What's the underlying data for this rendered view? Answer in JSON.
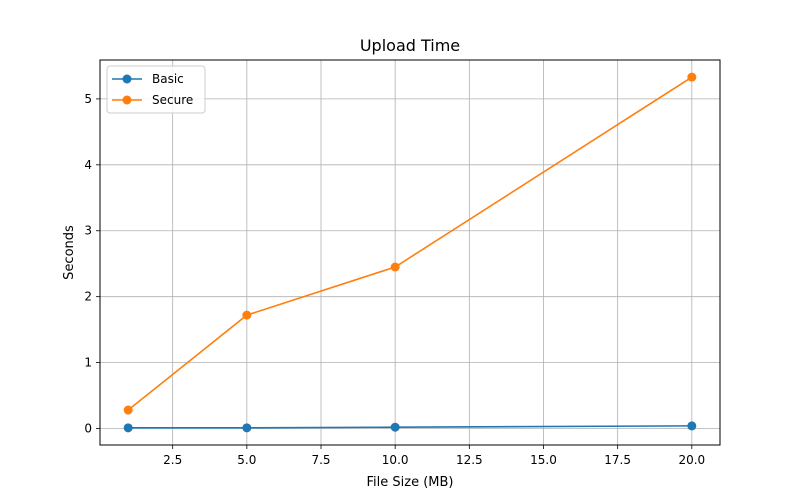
{
  "chart_data": {
    "type": "line",
    "title": "Upload Time",
    "xlabel": "File Size (MB)",
    "ylabel": "Seconds",
    "x": [
      1,
      5,
      10,
      20
    ],
    "xlim": [
      0.05,
      20.95
    ],
    "ylim": [
      -0.25,
      5.59
    ],
    "xticks": [
      2.5,
      5.0,
      7.5,
      10.0,
      12.5,
      15.0,
      17.5,
      20.0
    ],
    "xtick_labels": [
      "2.5",
      "5.0",
      "7.5",
      "10.0",
      "12.5",
      "15.0",
      "17.5",
      "20.0"
    ],
    "yticks": [
      0,
      1,
      2,
      3,
      4,
      5
    ],
    "ytick_labels": [
      "0",
      "1",
      "2",
      "3",
      "4",
      "5"
    ],
    "grid": true,
    "legend_position": "upper-left",
    "series": [
      {
        "name": "Basic",
        "color": "#1f77b4",
        "values": [
          0.01,
          0.01,
          0.02,
          0.04
        ]
      },
      {
        "name": "Secure",
        "color": "#ff7f0e",
        "values": [
          0.28,
          1.72,
          2.45,
          5.33
        ]
      }
    ]
  }
}
